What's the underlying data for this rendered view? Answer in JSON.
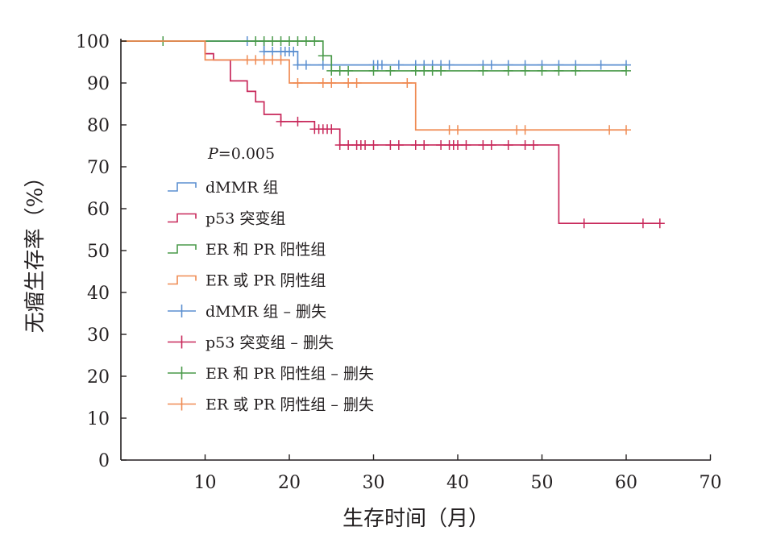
{
  "chart_data": {
    "type": "line",
    "subtype": "kaplan-meier",
    "xlabel": "生存时间（月）",
    "ylabel": "无瘤生存率（%）",
    "xlim": [
      0,
      70
    ],
    "ylim": [
      0,
      100
    ],
    "xticks": [
      10,
      20,
      30,
      40,
      50,
      60,
      70
    ],
    "yticks": [
      0,
      10,
      20,
      30,
      40,
      50,
      60,
      70,
      80,
      90,
      100
    ],
    "annotation": {
      "p_italic": "P",
      "p_value": "=0.005"
    },
    "series": [
      {
        "name": "dMMR 组",
        "censor_name": "dMMR 组 – 删失",
        "color": "#5b8fd0",
        "steps": [
          [
            0,
            100
          ],
          [
            17,
            100
          ],
          [
            17,
            97.5
          ],
          [
            21,
            97.5
          ],
          [
            21,
            94.3
          ],
          [
            60,
            94.3
          ]
        ],
        "censored": [
          15,
          17,
          18,
          19,
          19.5,
          20,
          20.5,
          21,
          22,
          24,
          30,
          30.5,
          31,
          33,
          35,
          36,
          37,
          38,
          39,
          43,
          44,
          46,
          48,
          50,
          52,
          54,
          57,
          60
        ]
      },
      {
        "name": "p53 突变组",
        "censor_name": "p53 突变组 – 删失",
        "color": "#c8285a",
        "steps": [
          [
            0,
            100
          ],
          [
            10,
            100
          ],
          [
            10,
            97
          ],
          [
            11,
            97
          ],
          [
            11,
            95.5
          ],
          [
            13,
            95.5
          ],
          [
            13,
            90.5
          ],
          [
            15,
            90.5
          ],
          [
            15,
            88
          ],
          [
            16,
            88
          ],
          [
            16,
            85.5
          ],
          [
            17,
            85.5
          ],
          [
            17,
            82.5
          ],
          [
            19,
            82.5
          ],
          [
            19,
            80.8
          ],
          [
            23,
            80.8
          ],
          [
            23,
            79
          ],
          [
            26,
            79
          ],
          [
            26,
            75.2
          ],
          [
            52,
            75.2
          ],
          [
            52,
            56.5
          ],
          [
            64,
            56.5
          ]
        ],
        "censored": [
          19,
          21,
          23,
          23.5,
          24,
          24.5,
          25,
          26,
          27,
          28,
          28.5,
          29,
          30,
          32,
          33,
          35,
          36,
          38,
          39,
          39.5,
          40,
          41,
          43,
          44,
          46,
          48,
          49,
          55,
          62,
          64
        ]
      },
      {
        "name": "ER 和 PR 阳性组",
        "censor_name": "ER 和 PR 阳性组 – 删失",
        "color": "#4a9a4a",
        "steps": [
          [
            0,
            100
          ],
          [
            24,
            100
          ],
          [
            24,
            96.5
          ],
          [
            25,
            96.5
          ],
          [
            25,
            92.9
          ],
          [
            60,
            92.9
          ]
        ],
        "censored": [
          5,
          16,
          17,
          18,
          19,
          20,
          21,
          22,
          23,
          24,
          25,
          26,
          27,
          30,
          32,
          35,
          36,
          37,
          38,
          43,
          46,
          48,
          50,
          52,
          54,
          60
        ]
      },
      {
        "name": "ER 或 PR 阴性组",
        "censor_name": "ER 或 PR 阴性组 – 删失",
        "color": "#ef8a52",
        "steps": [
          [
            0,
            100
          ],
          [
            10,
            100
          ],
          [
            10,
            95.5
          ],
          [
            20,
            95.5
          ],
          [
            20,
            90
          ],
          [
            35,
            90
          ],
          [
            35,
            78.8
          ],
          [
            60,
            78.8
          ]
        ],
        "censored": [
          15,
          16,
          17,
          18,
          19,
          21,
          24,
          25,
          27,
          28,
          34,
          39,
          40,
          47,
          48,
          58,
          60
        ]
      }
    ]
  }
}
